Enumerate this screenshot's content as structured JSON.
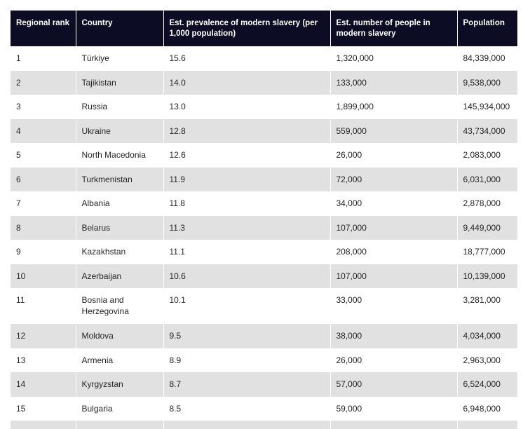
{
  "table": {
    "headers": [
      "Regional rank",
      "Country",
      "Est. prevalence of modern slavery (per 1,000 population)",
      "Est. number of people in modern slavery",
      "Population"
    ],
    "rows": [
      [
        "1",
        "Türkiye",
        "15.6",
        "1,320,000",
        "84,339,000"
      ],
      [
        "2",
        "Tajikistan",
        "14.0",
        "133,000",
        "9,538,000"
      ],
      [
        "3",
        "Russia",
        "13.0",
        "1,899,000",
        "145,934,000"
      ],
      [
        "4",
        "Ukraine",
        "12.8",
        "559,000",
        "43,734,000"
      ],
      [
        "5",
        "North Macedonia",
        "12.6",
        "26,000",
        "2,083,000"
      ],
      [
        "6",
        "Turkmenistan",
        "11.9",
        "72,000",
        "6,031,000"
      ],
      [
        "7",
        "Albania",
        "11.8",
        "34,000",
        "2,878,000"
      ],
      [
        "8",
        "Belarus",
        "11.3",
        "107,000",
        "9,449,000"
      ],
      [
        "9",
        "Kazakhstan",
        "11.1",
        "208,000",
        "18,777,000"
      ],
      [
        "10",
        "Azerbaijan",
        "10.6",
        "107,000",
        "10,139,000"
      ],
      [
        "11",
        "Bosnia and Herzegovina",
        "10.1",
        "33,000",
        "3,281,000"
      ],
      [
        "12",
        "Moldova",
        "9.5",
        "38,000",
        "4,034,000"
      ],
      [
        "13",
        "Armenia",
        "8.9",
        "26,000",
        "2,963,000"
      ],
      [
        "14",
        "Kyrgyzstan",
        "8.7",
        "57,000",
        "6,524,000"
      ],
      [
        "15",
        "Bulgaria",
        "8.5",
        "59,000",
        "6,948,000"
      ]
    ]
  }
}
